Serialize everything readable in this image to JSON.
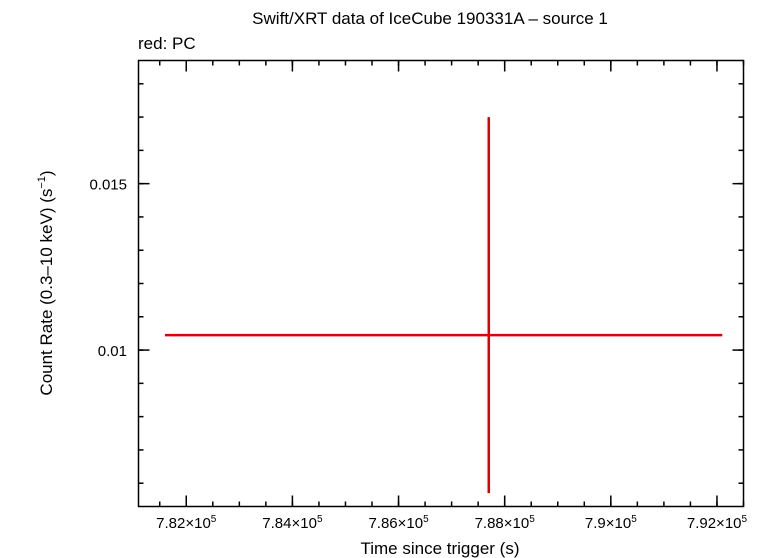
{
  "chart_data": {
    "type": "scatter",
    "title": "Swift/XRT data of IceCube 190331A – source 1",
    "subtitle": "red: PC",
    "xlabel": "Time since trigger (s)",
    "ylabel": "Count Rate (0.3–10 keV) (s",
    "ylabel_sup": "−1",
    "ylabel_end": ")",
    "xlim": [
      781100,
      792500
    ],
    "ylim": [
      0.0053,
      0.0187
    ],
    "x_ticks": [
      {
        "value": 782000,
        "mantissa": "7.82×10",
        "exp": "5"
      },
      {
        "value": 784000,
        "mantissa": "7.84×10",
        "exp": "5"
      },
      {
        "value": 786000,
        "mantissa": "7.86×10",
        "exp": "5"
      },
      {
        "value": 788000,
        "mantissa": "7.88×10",
        "exp": "5"
      },
      {
        "value": 790000,
        "mantissa": "7.9×10",
        "exp": "5"
      },
      {
        "value": 792000,
        "mantissa": "7.92×10",
        "exp": "5"
      }
    ],
    "y_ticks": [
      {
        "value": 0.01,
        "label": "0.01"
      },
      {
        "value": 0.015,
        "label": "0.015"
      }
    ],
    "x_minor_step": 500,
    "y_minor_step": 0.001,
    "grid": false,
    "series": [
      {
        "color": "#dd0000",
        "points": [
          {
            "x": 787700,
            "y": 0.01045,
            "xerr_low": 6100,
            "xerr_high": 4400,
            "yerr_low": 0.00475,
            "yerr_high": 0.00655
          }
        ]
      }
    ]
  }
}
